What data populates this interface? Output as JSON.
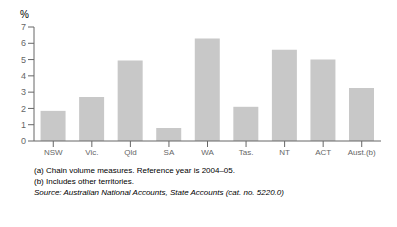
{
  "chart_data": {
    "type": "bar",
    "y_label": "%",
    "categories": [
      "NSW",
      "Vic.",
      "Qld",
      "SA",
      "WA",
      "Tas.",
      "NT",
      "ACT",
      "Aust.(b)"
    ],
    "values": [
      1.85,
      2.7,
      4.95,
      0.8,
      6.3,
      2.1,
      5.6,
      5.0,
      3.25
    ],
    "color": "#c8c8c8",
    "ylim": [
      0,
      7
    ],
    "yticks": [
      0,
      1,
      2,
      3,
      4,
      5,
      6,
      7
    ],
    "grid": false,
    "annotations": [
      "(a) Chain volume measures.  Reference year is 2004–05.",
      "(b) Includes other territories.",
      "Source: Australian National Accounts, State Accounts (cat. no. 5220.0)"
    ]
  }
}
